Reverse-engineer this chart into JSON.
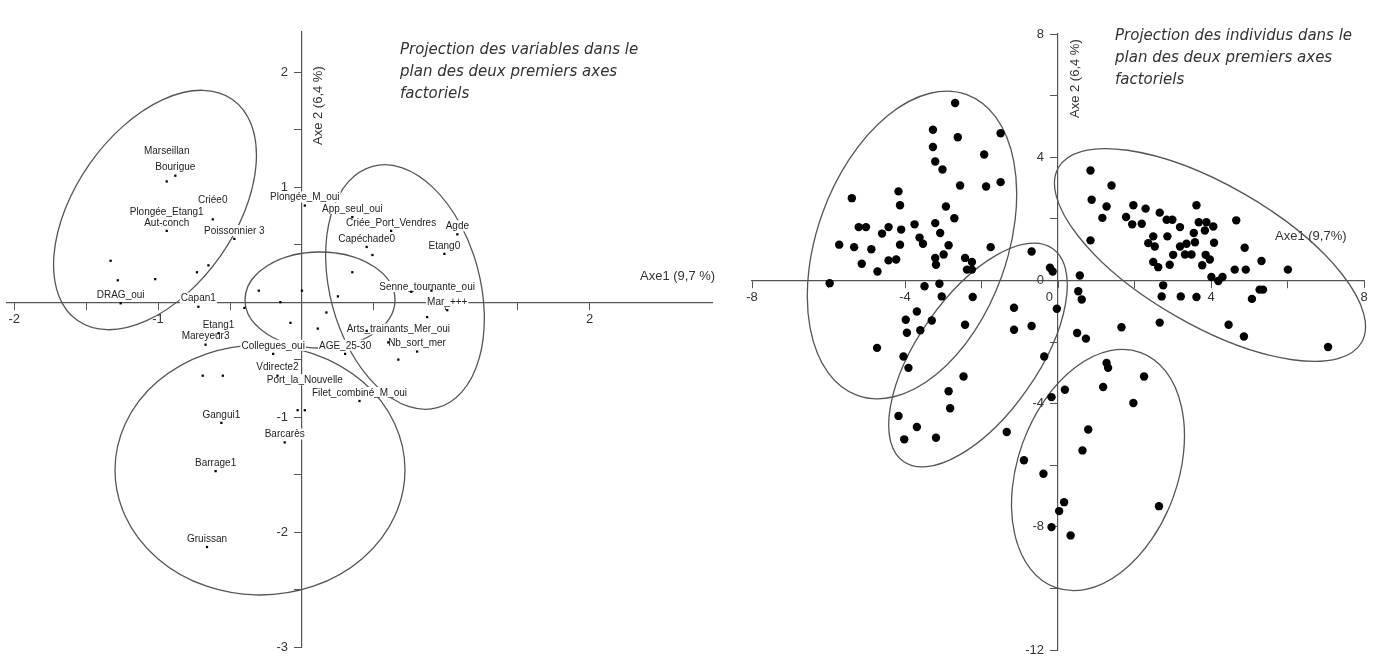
{
  "chart_data": [
    {
      "type": "scatter",
      "title": "Projection des variables dans le plan des deux premiers axes factoriels",
      "xlabel": "Axe1 (9,7 %)",
      "ylabel": "Axe 2 (6,4 %)",
      "marker": "square",
      "xlim": [
        -2.05,
        2.85
      ],
      "ylim": [
        -3,
        2.35
      ],
      "xticks": [
        -2,
        {
          "value": -1.5,
          "label": null
        },
        {
          "value": -1,
          "label": "-1"
        },
        {
          "value": -0.5,
          "label": null
        },
        {
          "value": 0.5,
          "label": null
        },
        {
          "value": 1,
          "label": null
        },
        {
          "value": 1.5,
          "label": null
        },
        2
      ],
      "yticks": [
        -3,
        {
          "value": -2.5,
          "label": null
        },
        -2,
        {
          "value": -1.5,
          "label": null
        },
        -1,
        {
          "value": -0.5,
          "label": null
        },
        {
          "value": 0.5,
          "label": null
        },
        1,
        {
          "value": 1.5,
          "label": null
        },
        2
      ],
      "series": [
        {
          "color": "#000000",
          "x": [
            -0.88,
            -0.94,
            -0.94,
            -0.62,
            -0.47,
            -1.26,
            -0.72,
            -0.58,
            -0.67,
            -0.17,
            0.02,
            0.35,
            0.45,
            0.62,
            1.08,
            0.99,
            1.01,
            0.87,
            0.8,
            0.67,
            0.3,
            -0.2,
            0.4,
            0.02,
            -0.56,
            -0.6,
            -0.66,
            -0.12,
            -1.33,
            -1.28,
            -1.02,
            -0.65,
            -0.73,
            -0.69,
            -0.55,
            -0.08,
            0.11,
            0.49,
            0.35,
            0.17,
            0.76,
            0.9,
            -0.03,
            -0.3,
            -0.15,
            0.0,
            0.25,
            -0.4,
            0.45,
            0.6
          ],
          "values": [
            1.1,
            1.05,
            0.62,
            0.72,
            0.55,
            -0.01,
            -0.04,
            -0.27,
            -0.37,
            -0.64,
            0.84,
            0.74,
            0.48,
            0.62,
            0.59,
            0.42,
            -0.07,
            -0.13,
            -0.43,
            -0.5,
            -0.45,
            -0.45,
            -0.86,
            -0.94,
            -1.05,
            -1.47,
            -2.13,
            -1.22,
            0.36,
            0.19,
            0.2,
            0.32,
            0.26,
            -0.64,
            -0.64,
            -0.18,
            -0.23,
            0.41,
            0.26,
            -0.09,
            0.09,
            0.1,
            -0.94,
            0.1,
            0.0,
            0.1,
            0.05,
            -0.05,
            -0.25,
            -0.35
          ]
        }
      ],
      "annotations": [
        {
          "text": "Bourigue",
          "x": -0.88,
          "y": 1.1
        },
        {
          "text": "Marseillan",
          "x": -0.94,
          "y": 1.05
        },
        {
          "text": "Aut-conch",
          "x": -0.94,
          "y": 0.62
        },
        {
          "text": "Plongée_Etang1",
          "x": -0.94,
          "y": 0.62
        },
        {
          "text": "Criée0",
          "x": -0.62,
          "y": 0.72
        },
        {
          "text": "Poissonnier 3",
          "x": -0.47,
          "y": 0.55
        },
        {
          "text": "DRAG_oui",
          "x": -1.26,
          "y": -0.01
        },
        {
          "text": "Capan1",
          "x": -0.72,
          "y": -0.04
        },
        {
          "text": "Etang1",
          "x": -0.58,
          "y": -0.27
        },
        {
          "text": "Mareyeur3",
          "x": -0.67,
          "y": -0.37
        },
        {
          "text": "Vdirecte2",
          "x": -0.17,
          "y": -0.64
        },
        {
          "text": "Plongée_M_oui",
          "x": 0.02,
          "y": 0.84
        },
        {
          "text": "App_seul_oui",
          "x": 0.35,
          "y": 0.74
        },
        {
          "text": "Capéchade0",
          "x": 0.45,
          "y": 0.48
        },
        {
          "text": "Criée_Port_Vendres",
          "x": 0.62,
          "y": 0.62
        },
        {
          "text": "Agde",
          "x": 1.08,
          "y": 0.59
        },
        {
          "text": "Etang0",
          "x": 0.99,
          "y": 0.42
        },
        {
          "text": "Mar_+++",
          "x": 1.01,
          "y": -0.07
        },
        {
          "text": "Senne_tournante_oui",
          "x": 0.87,
          "y": -0.13
        },
        {
          "text": "Nb_sort_mer",
          "x": 0.8,
          "y": -0.43
        },
        {
          "text": "Arts_trainants_Mer_oui",
          "x": 0.67,
          "y": -0.5
        },
        {
          "text": "AGE_25-30",
          "x": 0.3,
          "y": -0.45
        },
        {
          "text": "Collegues_oui",
          "x": -0.2,
          "y": -0.45
        },
        {
          "text": "Filet_combiné_M_oui",
          "x": 0.4,
          "y": -0.86
        },
        {
          "text": "Port_la_Nouvelle",
          "x": 0.02,
          "y": -0.94
        },
        {
          "text": "Gangui1",
          "x": -0.56,
          "y": -1.05
        },
        {
          "text": "Barrage1",
          "x": -0.6,
          "y": -1.47
        },
        {
          "text": "Gruissan",
          "x": -0.66,
          "y": -2.13
        },
        {
          "text": "Barcarès",
          "x": -0.12,
          "y": -1.22
        }
      ]
    },
    {
      "type": "scatter",
      "title": "Projection des individus dans le plan des deux premiers axes factoriels",
      "xlabel": "Axe1 (9,7%)",
      "ylabel": "Axe 2 (6,4 %)",
      "marker": "circle",
      "xlim": [
        -8,
        8
      ],
      "ylim": [
        -12,
        8
      ],
      "xticks": [
        -8,
        {
          "value": -6,
          "label": null
        },
        -4,
        {
          "value": -2,
          "label": null
        },
        {
          "value": 0,
          "label": "0"
        },
        {
          "value": 2,
          "label": null
        },
        4,
        {
          "value": 6,
          "label": null
        },
        8
      ],
      "yticks": [
        -12,
        {
          "value": -10,
          "label": null
        },
        -8,
        {
          "value": -6,
          "label": null
        },
        -4,
        {
          "value": -2,
          "label": null
        },
        {
          "value": 0,
          "label": "0"
        },
        {
          "value": 2,
          "label": null
        },
        4,
        {
          "value": 6,
          "label": null
        },
        8
      ],
      "series": [
        {
          "color": "#000000",
          "x": [
            -2.69,
            -3.27,
            -2.62,
            -1.5,
            -3.27,
            -1.93,
            -3.21,
            -3.02,
            -2.56,
            -1.88,
            -1.5,
            -4.17,
            -5.39,
            -4.13,
            -2.93,
            -2.71,
            -5.21,
            -5.02,
            -4.43,
            -4.6,
            -4.1,
            -3.75,
            -3.21,
            -3.08,
            -3.62,
            -3.53,
            -5.72,
            -5.33,
            -4.88,
            -4.13,
            -2.86,
            -1.76,
            -0.69,
            -2.99,
            -3.21,
            -4.43,
            -4.23,
            -5.13,
            -3.19,
            -2.43,
            -2.25,
            -2.38,
            -2.25,
            -4.72,
            -0.21,
            -0.14,
            -5.97,
            -3.49,
            -3.1,
            -3.04,
            -2.23,
            -1.15,
            -0.03,
            -3.69,
            -3.98,
            -3.3,
            -2.43,
            -3.95,
            -3.6,
            -1.15,
            -0.69,
            -4.73,
            -4.04,
            -0.36,
            -3.91,
            -2.47,
            -2.86,
            -0.17,
            -2.82,
            -4.17,
            -3.69,
            -4.02,
            -3.19,
            -1.34,
            -0.89,
            -0.38,
            0.16,
            0.03,
            -0.17,
            0.33,
            0.57,
            0.53,
            0.62,
            0.5,
            0.73,
            0.18,
            0.85,
            1.4,
            0.88,
            1.27,
            1.16,
            0.85,
            1.97,
            2.29,
            1.78,
            1.94,
            2.19,
            2.66,
            2.84,
            2.99,
            3.19,
            3.62,
            3.68,
            3.88,
            4.06,
            3.84,
            3.55,
            2.49,
            2.86,
            2.36,
            2.53,
            3.19,
            3.36,
            3.58,
            4.08,
            3.01,
            3.32,
            3.49,
            3.86,
            3.97,
            4.66,
            4.88,
            5.32,
            4.62,
            4.91,
            6.01,
            2.49,
            2.62,
            2.92,
            3.77,
            4.01,
            4.19,
            4.3,
            2.75,
            2.71,
            3.21,
            3.62,
            5.27,
            5.36,
            5.07,
            1.66,
            2.66,
            4.46,
            4.86,
            7.06,
            1.27,
            1.31,
            2.25,
            1.18,
            1.97,
            0.79,
            0.64,
            2.64
          ],
          "values": [
            5.76,
            4.89,
            4.65,
            4.78,
            4.33,
            4.09,
            3.86,
            3.6,
            3.08,
            3.05,
            3.19,
            2.89,
            2.67,
            2.44,
            2.4,
            2.02,
            1.73,
            1.73,
            1.73,
            1.52,
            1.65,
            1.82,
            1.86,
            1.54,
            1.39,
            1.19,
            1.16,
            1.08,
            1.01,
            1.16,
            1.14,
            1.08,
            0.94,
            0.84,
            0.73,
            0.65,
            0.68,
            0.54,
            0.51,
            0.73,
            0.6,
            0.35,
            0.35,
            0.29,
            0.41,
            0.29,
            -0.09,
            -0.19,
            -0.11,
            -0.52,
            -0.54,
            -0.89,
            -0.92,
            -1.01,
            -1.28,
            -1.3,
            -1.44,
            -1.7,
            -1.62,
            -1.6,
            -1.48,
            -2.19,
            -2.47,
            -2.47,
            -2.84,
            -3.12,
            -3.6,
            -3.79,
            -4.15,
            -4.4,
            -4.76,
            -5.16,
            -5.11,
            -4.92,
            -5.84,
            -6.28,
            -7.2,
            -7.49,
            -8.01,
            -8.28,
            0.16,
            -0.35,
            -0.62,
            -1.71,
            -1.89,
            -3.55,
            3.57,
            3.08,
            2.62,
            2.4,
            2.03,
            1.3,
            2.44,
            2.33,
            2.06,
            1.82,
            1.84,
            2.2,
            1.97,
            1.97,
            1.73,
            2.44,
            1.89,
            1.89,
            1.75,
            1.62,
            1.54,
            1.43,
            1.43,
            1.21,
            1.1,
            1.1,
            1.19,
            1.24,
            1.22,
            0.83,
            0.84,
            0.84,
            0.83,
            0.68,
            1.95,
            1.06,
            0.63,
            0.35,
            0.35,
            0.35,
            0.6,
            0.43,
            0.51,
            0.49,
            0.11,
            -0.02,
            0.11,
            -0.16,
            -0.52,
            -0.52,
            -0.54,
            -0.3,
            -0.3,
            -0.6,
            -1.52,
            -1.37,
            -1.44,
            -1.82,
            -2.16,
            -2.68,
            -2.84,
            -3.12,
            -3.46,
            -3.98,
            -4.84,
            -5.52,
            -7.33
          ]
        }
      ]
    }
  ]
}
